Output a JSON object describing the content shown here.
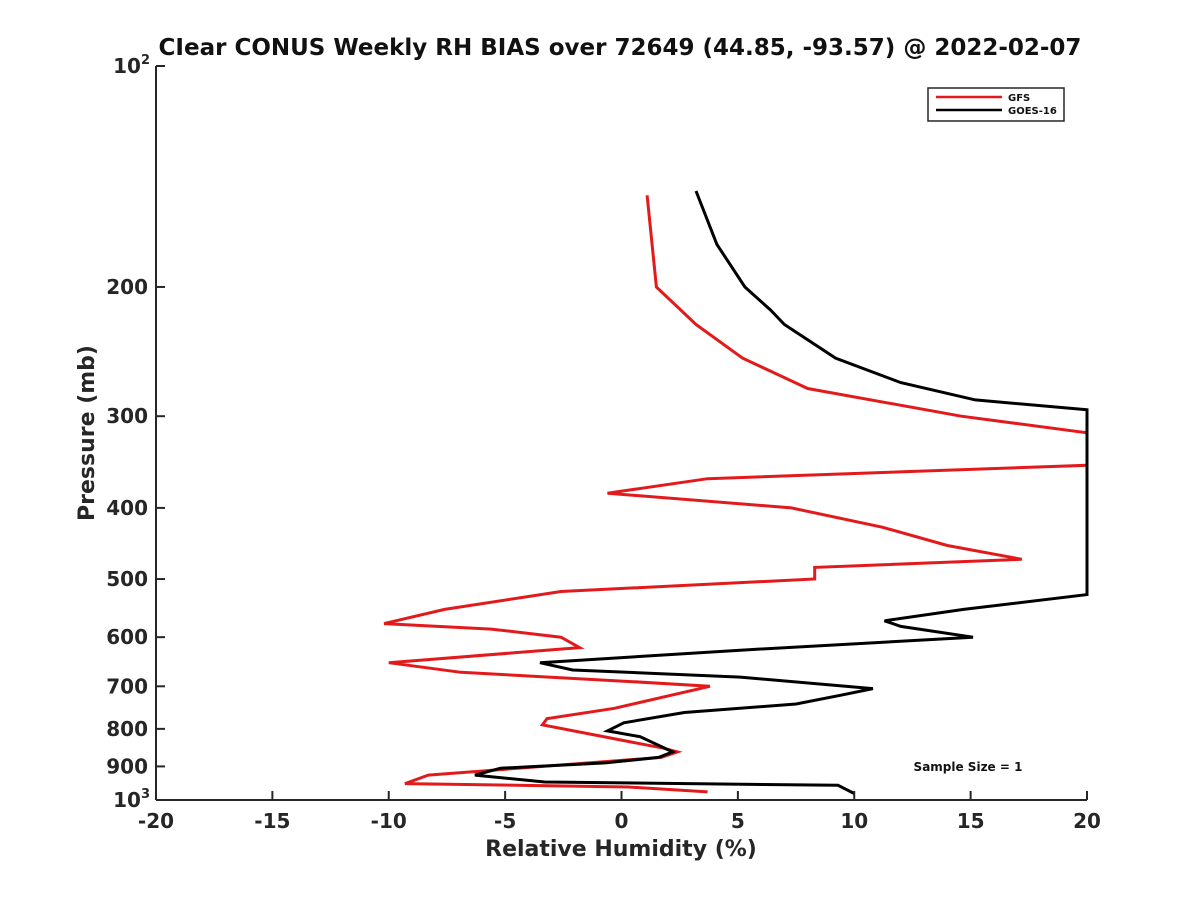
{
  "chart_data": {
    "type": "line",
    "title": "CIear CONUS Weekly RH BIAS over 72649 (44.85, -93.57) @ 2022-02-07",
    "xlabel": "Relative Humidity (%)",
    "ylabel": "Pressure (mb)",
    "xlim": [
      -20,
      20
    ],
    "ylim": [
      100,
      1000
    ],
    "y_scale": "log",
    "y_reversed": true,
    "x_ticks": [
      -20,
      -15,
      -10,
      -5,
      0,
      5,
      10,
      15,
      20
    ],
    "x_tick_labels": [
      "-20",
      "-15",
      "-10",
      "-5",
      "0",
      "5",
      "10",
      "15",
      "20"
    ],
    "y_ticks": [
      {
        "value": 100,
        "base": "10",
        "exp": "2"
      },
      {
        "value": 200,
        "base": "200",
        "exp": ""
      },
      {
        "value": 300,
        "base": "300",
        "exp": ""
      },
      {
        "value": 400,
        "base": "400",
        "exp": ""
      },
      {
        "value": 500,
        "base": "500",
        "exp": ""
      },
      {
        "value": 600,
        "base": "600",
        "exp": ""
      },
      {
        "value": 700,
        "base": "700",
        "exp": ""
      },
      {
        "value": 800,
        "base": "800",
        "exp": ""
      },
      {
        "value": 900,
        "base": "900",
        "exp": ""
      },
      {
        "value": 1000,
        "base": "10",
        "exp": "3"
      }
    ],
    "grid": false,
    "legend_position": "top-right",
    "annotation": "Sample Size = 1",
    "series": [
      {
        "name": "GFS",
        "color": "#e31a1c",
        "points": [
          {
            "x": 1.1,
            "y": 150
          },
          {
            "x": 1.5,
            "y": 200
          },
          {
            "x": 3.2,
            "y": 225
          },
          {
            "x": 5.2,
            "y": 250
          },
          {
            "x": 8.0,
            "y": 275
          },
          {
            "x": 14.6,
            "y": 300
          },
          {
            "x": 20.0,
            "y": 316
          },
          {
            "x": 20.0,
            "y": 350
          },
          {
            "x": 3.7,
            "y": 365
          },
          {
            "x": -0.6,
            "y": 382
          },
          {
            "x": 7.3,
            "y": 400
          },
          {
            "x": 11.2,
            "y": 425
          },
          {
            "x": 14.0,
            "y": 450
          },
          {
            "x": 17.2,
            "y": 470
          },
          {
            "x": 8.3,
            "y": 482
          },
          {
            "x": 8.3,
            "y": 500
          },
          {
            "x": -2.6,
            "y": 520
          },
          {
            "x": -7.6,
            "y": 550
          },
          {
            "x": -10.2,
            "y": 575
          },
          {
            "x": -5.6,
            "y": 585
          },
          {
            "x": -2.6,
            "y": 600
          },
          {
            "x": -1.8,
            "y": 620
          },
          {
            "x": -10.0,
            "y": 650
          },
          {
            "x": -6.9,
            "y": 670
          },
          {
            "x": 0.5,
            "y": 690
          },
          {
            "x": 3.8,
            "y": 700
          },
          {
            "x": -0.3,
            "y": 750
          },
          {
            "x": -3.2,
            "y": 775
          },
          {
            "x": -3.4,
            "y": 790
          },
          {
            "x": 1.8,
            "y": 850
          },
          {
            "x": 2.4,
            "y": 860
          },
          {
            "x": 1.7,
            "y": 875
          },
          {
            "x": -8.3,
            "y": 925
          },
          {
            "x": -9.3,
            "y": 950
          },
          {
            "x": 0.3,
            "y": 960
          },
          {
            "x": 3.7,
            "y": 975
          }
        ]
      },
      {
        "name": "GOES-16",
        "color": "#000000",
        "points": [
          {
            "x": 3.2,
            "y": 148
          },
          {
            "x": 4.1,
            "y": 175
          },
          {
            "x": 5.3,
            "y": 200
          },
          {
            "x": 6.4,
            "y": 215
          },
          {
            "x": 7.0,
            "y": 225
          },
          {
            "x": 9.2,
            "y": 250
          },
          {
            "x": 12.0,
            "y": 270
          },
          {
            "x": 15.2,
            "y": 285
          },
          {
            "x": 20.0,
            "y": 294
          },
          {
            "x": 20.0,
            "y": 525
          },
          {
            "x": 14.7,
            "y": 550
          },
          {
            "x": 11.3,
            "y": 570
          },
          {
            "x": 12.0,
            "y": 580
          },
          {
            "x": 15.1,
            "y": 600
          },
          {
            "x": 5.1,
            "y": 625
          },
          {
            "x": -3.5,
            "y": 650
          },
          {
            "x": -2.1,
            "y": 665
          },
          {
            "x": 5.1,
            "y": 680
          },
          {
            "x": 10.8,
            "y": 705
          },
          {
            "x": 9.4,
            "y": 720
          },
          {
            "x": 7.5,
            "y": 740
          },
          {
            "x": 2.7,
            "y": 760
          },
          {
            "x": 0.1,
            "y": 785
          },
          {
            "x": -0.6,
            "y": 805
          },
          {
            "x": 0.8,
            "y": 820
          },
          {
            "x": 2.2,
            "y": 860
          },
          {
            "x": 1.6,
            "y": 875
          },
          {
            "x": -0.7,
            "y": 890
          },
          {
            "x": -5.2,
            "y": 905
          },
          {
            "x": -6.3,
            "y": 925
          },
          {
            "x": -3.3,
            "y": 945
          },
          {
            "x": 9.3,
            "y": 955
          },
          {
            "x": 10.0,
            "y": 980
          }
        ]
      }
    ]
  }
}
